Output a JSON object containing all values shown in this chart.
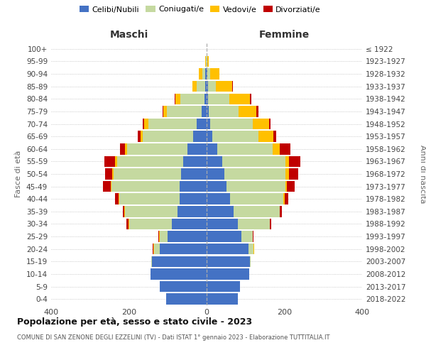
{
  "age_groups": [
    "0-4",
    "5-9",
    "10-14",
    "15-19",
    "20-24",
    "25-29",
    "30-34",
    "35-39",
    "40-44",
    "45-49",
    "50-54",
    "55-59",
    "60-64",
    "65-69",
    "70-74",
    "75-79",
    "80-84",
    "85-89",
    "90-94",
    "95-99",
    "100+"
  ],
  "birth_years": [
    "2018-2022",
    "2013-2017",
    "2008-2012",
    "2003-2007",
    "1998-2002",
    "1993-1997",
    "1988-1992",
    "1983-1987",
    "1978-1982",
    "1973-1977",
    "1968-1972",
    "1963-1967",
    "1958-1962",
    "1953-1957",
    "1948-1952",
    "1943-1947",
    "1938-1942",
    "1933-1937",
    "1928-1932",
    "1923-1927",
    "≤ 1922"
  ],
  "colors": {
    "celibi": "#4472c4",
    "coniugati": "#c5d9a0",
    "vedovi": "#ffc000",
    "divorziati": "#c00000"
  },
  "maschi": {
    "celibi": [
      105,
      120,
      145,
      140,
      120,
      100,
      90,
      75,
      70,
      70,
      65,
      60,
      50,
      35,
      25,
      12,
      6,
      4,
      3,
      0,
      0
    ],
    "coniugati": [
      0,
      0,
      0,
      2,
      15,
      20,
      110,
      135,
      155,
      175,
      175,
      170,
      155,
      130,
      125,
      90,
      62,
      22,
      8,
      2,
      0
    ],
    "vedovi": [
      0,
      0,
      0,
      0,
      2,
      2,
      1,
      1,
      1,
      2,
      3,
      5,
      5,
      5,
      10,
      10,
      12,
      10,
      10,
      2,
      0
    ],
    "divorziati": [
      0,
      0,
      0,
      0,
      2,
      2,
      5,
      5,
      10,
      20,
      18,
      28,
      12,
      8,
      5,
      2,
      2,
      0,
      0,
      0,
      0
    ]
  },
  "femmine": {
    "nubili": [
      80,
      85,
      110,
      112,
      108,
      90,
      80,
      70,
      60,
      52,
      45,
      40,
      28,
      15,
      10,
      5,
      4,
      3,
      2,
      0,
      0
    ],
    "coniugate": [
      0,
      0,
      0,
      2,
      13,
      28,
      82,
      118,
      138,
      150,
      158,
      162,
      142,
      118,
      108,
      78,
      55,
      20,
      8,
      2,
      0
    ],
    "vedove": [
      0,
      0,
      0,
      0,
      1,
      1,
      1,
      1,
      2,
      5,
      8,
      10,
      18,
      38,
      42,
      45,
      52,
      42,
      22,
      4,
      0
    ],
    "divorziate": [
      0,
      0,
      0,
      0,
      1,
      2,
      4,
      5,
      10,
      20,
      25,
      30,
      28,
      8,
      5,
      5,
      4,
      2,
      0,
      0,
      0
    ]
  },
  "xlim": 400,
  "title": "Popolazione per età, sesso e stato civile - 2023",
  "subtitle": "COMUNE DI SAN ZENONE DEGLI EZZELINI (TV) - Dati ISTAT 1° gennaio 2023 - Elaborazione TUTTITALIA.IT",
  "ylabel_left": "Fasce di età",
  "ylabel_right": "Anni di nascita",
  "xlabel_left": "Maschi",
  "xlabel_right": "Femmine",
  "legend_labels": [
    "Celibi/Nubili",
    "Coniugati/e",
    "Vedovi/e",
    "Divorziati/e"
  ]
}
